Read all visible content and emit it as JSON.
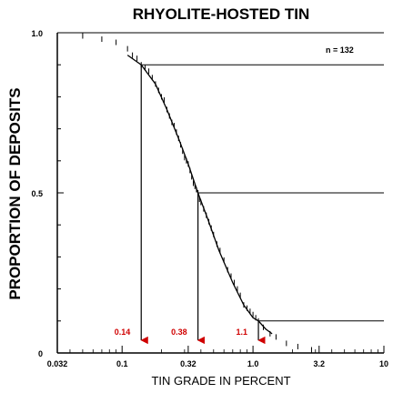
{
  "chart_data": {
    "type": "scatter",
    "title": "RHYOLITE-HOSTED TIN",
    "xlabel": "TIN GRADE IN PERCENT",
    "ylabel": "PROPORTION OF DEPOSITS",
    "x_scale": "log",
    "xlim": [
      0.032,
      10
    ],
    "ylim": [
      0,
      1
    ],
    "x_ticks": [
      "0.032",
      "0.1",
      "0.32",
      "1.0",
      "3.2",
      "10"
    ],
    "y_ticks": [
      "0",
      "0.5",
      "1.0"
    ],
    "sample_size_label": "n = 132",
    "fitted_curve": {
      "x": [
        0.11,
        0.14,
        0.18,
        0.22,
        0.27,
        0.32,
        0.38,
        0.45,
        0.55,
        0.7,
        0.85,
        1.0,
        1.1,
        1.25,
        1.4
      ],
      "y": [
        0.93,
        0.9,
        0.84,
        0.76,
        0.67,
        0.59,
        0.5,
        0.42,
        0.32,
        0.22,
        0.15,
        0.11,
        0.1,
        0.075,
        0.06
      ]
    },
    "deposit_points": {
      "x": [
        0.05,
        0.07,
        0.09,
        0.11,
        0.12,
        0.13,
        0.14,
        0.15,
        0.16,
        0.17,
        0.18,
        0.19,
        0.2,
        0.21,
        0.22,
        0.23,
        0.24,
        0.25,
        0.26,
        0.27,
        0.28,
        0.29,
        0.3,
        0.31,
        0.32,
        0.33,
        0.34,
        0.35,
        0.36,
        0.37,
        0.38,
        0.39,
        0.4,
        0.42,
        0.44,
        0.46,
        0.48,
        0.5,
        0.53,
        0.56,
        0.6,
        0.64,
        0.68,
        0.72,
        0.76,
        0.8,
        0.85,
        0.9,
        0.95,
        1.0,
        1.05,
        1.1,
        1.2,
        1.35,
        1.5,
        1.8,
        2.2,
        2.8
      ],
      "y": [
        0.99,
        0.98,
        0.97,
        0.95,
        0.93,
        0.92,
        0.9,
        0.89,
        0.88,
        0.86,
        0.84,
        0.82,
        0.8,
        0.79,
        0.76,
        0.74,
        0.72,
        0.71,
        0.69,
        0.67,
        0.65,
        0.63,
        0.61,
        0.6,
        0.59,
        0.57,
        0.55,
        0.53,
        0.52,
        0.51,
        0.5,
        0.48,
        0.47,
        0.45,
        0.43,
        0.41,
        0.39,
        0.37,
        0.34,
        0.32,
        0.29,
        0.26,
        0.24,
        0.22,
        0.2,
        0.18,
        0.15,
        0.14,
        0.13,
        0.12,
        0.11,
        0.1,
        0.08,
        0.06,
        0.05,
        0.03,
        0.02,
        0.01
      ]
    },
    "percentile_markers": [
      {
        "proportion": 0.9,
        "grade": 0.14,
        "label": "0.14"
      },
      {
        "proportion": 0.5,
        "grade": 0.38,
        "label": "0.38"
      },
      {
        "proportion": 0.1,
        "grade": 1.1,
        "label": "1.1"
      }
    ],
    "colors": {
      "axes": "#000000",
      "annotation": "#d00000",
      "curve": "#000000"
    },
    "grid": false
  }
}
